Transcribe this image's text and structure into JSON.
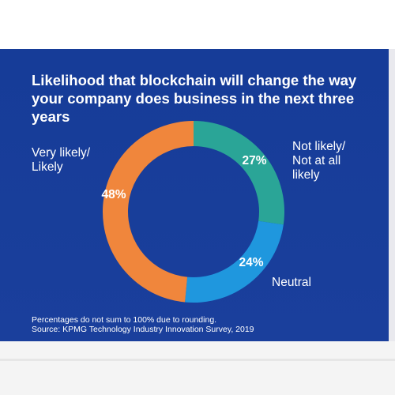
{
  "title_lines": [
    "Likelihood that blockchain will change the way",
    "your company does business in the next three",
    "years"
  ],
  "chart_data": {
    "type": "pie",
    "title": "Likelihood that blockchain will change the way your company does business in the next three years",
    "hole": "donut",
    "slices": [
      {
        "label": "Not likely/ Not at all likely",
        "label_lines": [
          "Not likely/",
          "Not at all",
          "likely"
        ],
        "value": 27,
        "display": "27%",
        "color": "#2aa597"
      },
      {
        "label": "Neutral",
        "label_lines": [
          "Neutral"
        ],
        "value": 24,
        "display": "24%",
        "color": "#1f97de"
      },
      {
        "label": "Very likely/ Likely",
        "label_lines": [
          "Very likely/",
          "Likely"
        ],
        "value": 48,
        "display": "48%",
        "color": "#f0863c"
      }
    ]
  },
  "footnotes": [
    "Percentages do not sum to 100% due to rounding.",
    "Source: KPMG Technology Industry Innovation Survey, 2019"
  ],
  "colors": {
    "background": "#163d9a",
    "text": "#ffffff"
  }
}
